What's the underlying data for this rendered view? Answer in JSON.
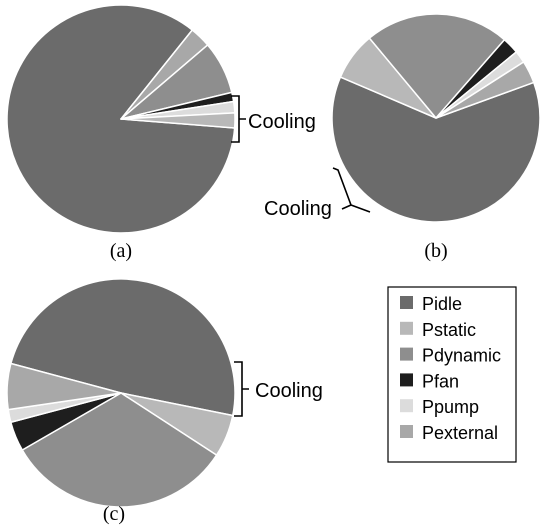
{
  "chart_data": [
    {
      "type": "pie",
      "panel_label": "(a)",
      "series": [
        {
          "name": "Pidle",
          "value": 84.5
        },
        {
          "name": "Pexternal",
          "value": 3.0
        },
        {
          "name": "Pdynamic",
          "value": 7.5
        },
        {
          "name": "Pfan",
          "value": 1.3
        },
        {
          "name": "Ppump",
          "value": 1.6
        },
        {
          "name": "Pstatic",
          "value": 2.1
        }
      ],
      "annotation": "Cooling"
    },
    {
      "type": "pie",
      "panel_label": "(b)",
      "series": [
        {
          "name": "Pidle",
          "value": 62.0
        },
        {
          "name": "Pstatic",
          "value": 7.5
        },
        {
          "name": "Pdynamic",
          "value": 22.5
        },
        {
          "name": "Pfan",
          "value": 2.6
        },
        {
          "name": "Ppump",
          "value": 1.9
        },
        {
          "name": "Pexternal",
          "value": 3.5
        }
      ],
      "annotation": "Cooling"
    },
    {
      "type": "pie",
      "panel_label": "(c)",
      "series": [
        {
          "name": "Pidle",
          "value": 49.0
        },
        {
          "name": "Pstatic",
          "value": 6.0
        },
        {
          "name": "Pdynamic",
          "value": 32.5
        },
        {
          "name": "Pfan",
          "value": 4.2
        },
        {
          "name": "Ppump",
          "value": 1.8
        },
        {
          "name": "Pexternal",
          "value": 6.5
        }
      ],
      "annotation": "Cooling"
    }
  ],
  "legend": [
    {
      "name": "Pidle",
      "color": "#6b6b6b"
    },
    {
      "name": "Pstatic",
      "color": "#b8b8b8"
    },
    {
      "name": "Pdynamic",
      "color": "#8e8e8e"
    },
    {
      "name": "Pfan",
      "color": "#1e1e1e"
    },
    {
      "name": "Ppump",
      "color": "#dcdcdc"
    },
    {
      "name": "Pexternal",
      "color": "#a8a8a8"
    }
  ],
  "styles": {
    "slice_border": "#ffffff",
    "text_color": "#000000"
  }
}
